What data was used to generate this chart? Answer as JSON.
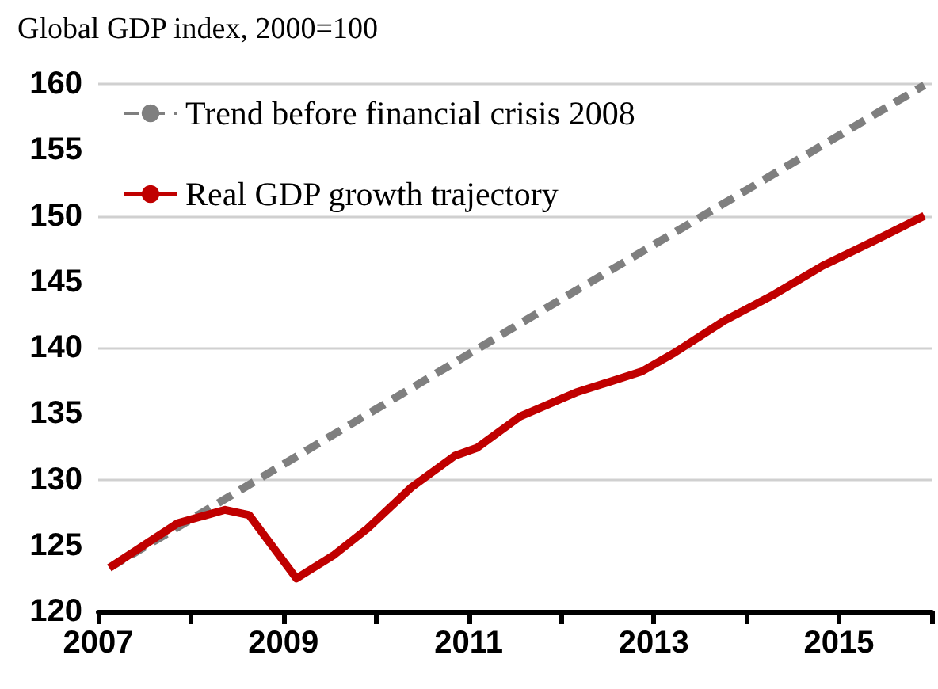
{
  "chart_data": {
    "type": "line",
    "title": "Global GDP index, 2000=100",
    "xlim": [
      2007,
      2016
    ],
    "xticks": [
      2007,
      {
        "value": 2008,
        "label": null
      },
      2009,
      {
        "value": 2010,
        "label": null
      },
      2011,
      {
        "value": 2012,
        "label": null
      },
      2013,
      {
        "value": 2014,
        "label": null
      },
      2015,
      {
        "value": 2016,
        "label": null
      }
    ],
    "ylim": [
      120,
      160
    ],
    "yticks": [
      120,
      125,
      130,
      135,
      140,
      145,
      150,
      155,
      160
    ],
    "grid": "y",
    "legend": "top left",
    "marker": "none",
    "series": [
      {
        "name": "Trend before financial crisis 2008",
        "color": "#7f7f7f",
        "line_style": "dashed",
        "x": [
          2007.12,
          2011.5,
          2015.92
        ],
        "values": [
          123.3,
          141.6,
          159.9
        ]
      },
      {
        "name": "Real GDP growth trajectory",
        "color": "#c00000",
        "line_style": "solid",
        "x": [
          2007.12,
          2007.86,
          2008.37,
          2008.63,
          2009.14,
          2009.55,
          2009.91,
          2010.38,
          2010.85,
          2011.09,
          2011.56,
          2012.16,
          2012.87,
          2013.22,
          2013.75,
          2014.29,
          2014.82,
          2015.35,
          2015.92
        ],
        "values": [
          123.3,
          126.7,
          127.7,
          127.3,
          122.5,
          124.3,
          126.3,
          129.4,
          131.8,
          132.4,
          134.8,
          136.6,
          138.2,
          139.6,
          142.0,
          144.0,
          146.2,
          148.0,
          150.0
        ]
      }
    ]
  }
}
